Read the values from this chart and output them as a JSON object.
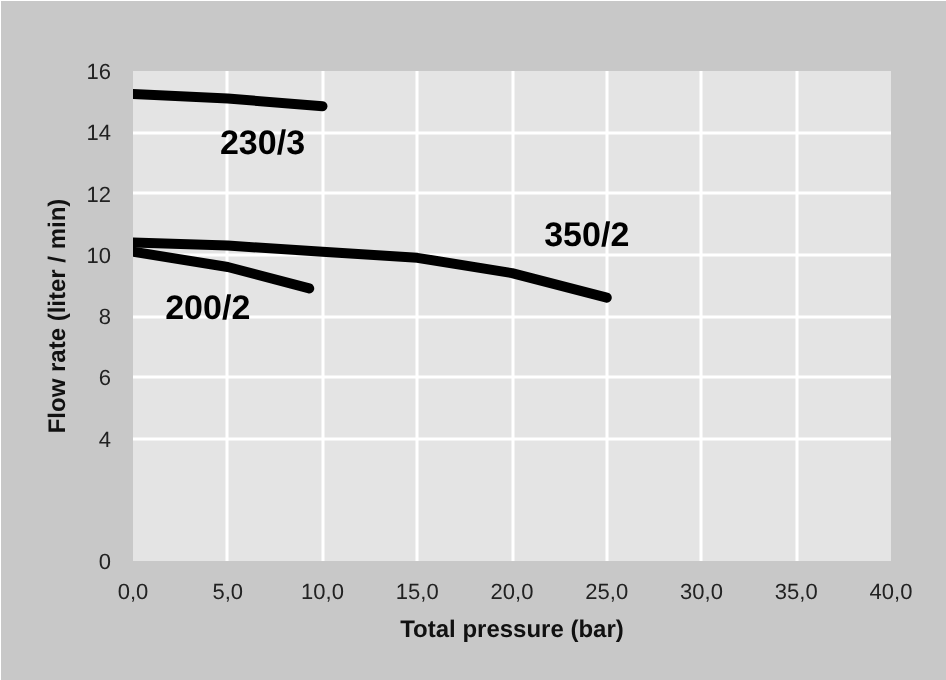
{
  "chart_data": {
    "type": "line",
    "xlabel": "Total pressure (bar)",
    "ylabel": "Flow rate (liter / min)",
    "series": [
      {
        "name": "230/3",
        "color": "#000000",
        "x": [
          0,
          5,
          10
        ],
        "values": [
          15.25,
          15.1,
          14.85
        ]
      },
      {
        "name": "350/2",
        "color": "#000000",
        "x": [
          0,
          5,
          10,
          15,
          20,
          25
        ],
        "values": [
          10.4,
          10.3,
          10.1,
          9.9,
          9.4,
          8.6
        ]
      },
      {
        "name": "200/2",
        "color": "#000000",
        "x": [
          0,
          5,
          9.3
        ],
        "values": [
          10.1,
          9.6,
          8.9
        ]
      }
    ],
    "xlim": [
      0,
      40
    ],
    "ylim": [
      0,
      16
    ],
    "xticks": [
      {
        "value": 0,
        "label": "0,0"
      },
      {
        "value": 5,
        "label": "5,0"
      },
      {
        "value": 10,
        "label": "10,0"
      },
      {
        "value": 15,
        "label": "15,0"
      },
      {
        "value": 20,
        "label": "20,0"
      },
      {
        "value": 25,
        "label": "25,0"
      },
      {
        "value": 30,
        "label": "30,0"
      },
      {
        "value": 35,
        "label": "35,0"
      },
      {
        "value": 40,
        "label": "40,0"
      }
    ],
    "yticks": [
      0,
      4,
      6,
      8,
      10,
      12,
      14,
      16
    ],
    "grid": true,
    "legend": false,
    "marker": "none",
    "line_style": "solid"
  }
}
